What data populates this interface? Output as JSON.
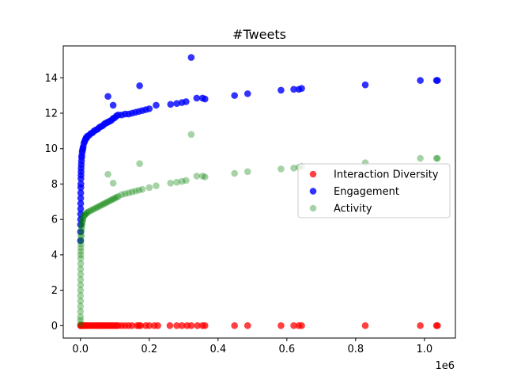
{
  "chart_data": {
    "type": "scatter",
    "title": "#Tweets",
    "xlabel": "",
    "ylabel": "",
    "x_scale_label": "1e6",
    "xlim": [
      -50000,
      1090000
    ],
    "ylim": [
      -0.7,
      15.8
    ],
    "x_ticks": [
      0,
      200000,
      400000,
      600000,
      800000,
      1000000
    ],
    "x_tick_labels": [
      "0.0",
      "0.2",
      "0.4",
      "0.6",
      "0.8",
      "1.0"
    ],
    "y_ticks": [
      0,
      2,
      4,
      6,
      8,
      10,
      12,
      14
    ],
    "y_tick_labels": [
      "0",
      "2",
      "4",
      "6",
      "8",
      "10",
      "12",
      "14"
    ],
    "grid": false,
    "legend_position": "center-right",
    "series": [
      {
        "name": "Interaction Diversity",
        "color": "#ff0000",
        "alpha": 0.75,
        "points": [
          [
            500,
            0
          ],
          [
            1000,
            0
          ],
          [
            2000,
            0
          ],
          [
            3500,
            0
          ],
          [
            5000,
            0
          ],
          [
            8000,
            0
          ],
          [
            12000,
            0
          ],
          [
            16000,
            0
          ],
          [
            20000,
            0
          ],
          [
            25000,
            0
          ],
          [
            30000,
            0
          ],
          [
            35000,
            0
          ],
          [
            40000,
            0
          ],
          [
            45000,
            0
          ],
          [
            50000,
            0
          ],
          [
            55000,
            0
          ],
          [
            60000,
            0
          ],
          [
            65000,
            0
          ],
          [
            70000,
            0
          ],
          [
            75000,
            0
          ],
          [
            80000,
            0
          ],
          [
            85000,
            0
          ],
          [
            90000,
            0
          ],
          [
            95000,
            0
          ],
          [
            100000,
            0
          ],
          [
            105000,
            0
          ],
          [
            110000,
            0
          ],
          [
            120000,
            0
          ],
          [
            130000,
            0
          ],
          [
            140000,
            0
          ],
          [
            150000,
            0
          ],
          [
            165000,
            0
          ],
          [
            170000,
            0
          ],
          [
            175000,
            0
          ],
          [
            190000,
            0
          ],
          [
            200000,
            0
          ],
          [
            215000,
            0
          ],
          [
            225000,
            0
          ],
          [
            260000,
            0
          ],
          [
            280000,
            0
          ],
          [
            295000,
            0
          ],
          [
            310000,
            0
          ],
          [
            322000,
            0
          ],
          [
            340000,
            0
          ],
          [
            355000,
            0
          ],
          [
            362000,
            0
          ],
          [
            448000,
            0
          ],
          [
            486000,
            0
          ],
          [
            583000,
            0
          ],
          [
            620000,
            0
          ],
          [
            635000,
            0
          ],
          [
            643000,
            0
          ],
          [
            828000,
            0
          ],
          [
            988000,
            0
          ],
          [
            1035000,
            0
          ],
          [
            1038000,
            0
          ]
        ]
      },
      {
        "name": "Engagement",
        "color": "#0000ff",
        "alpha": 0.8,
        "points": [
          [
            100,
            4.8
          ],
          [
            200,
            5.3
          ],
          [
            300,
            5.7
          ],
          [
            400,
            6.0
          ],
          [
            500,
            6.3
          ],
          [
            600,
            6.6
          ],
          [
            700,
            6.9
          ],
          [
            800,
            7.2
          ],
          [
            900,
            7.5
          ],
          [
            1000,
            7.8
          ],
          [
            1200,
            8.0
          ],
          [
            1400,
            8.3
          ],
          [
            1600,
            8.5
          ],
          [
            1800,
            8.7
          ],
          [
            2000,
            8.9
          ],
          [
            2500,
            9.1
          ],
          [
            3000,
            9.3
          ],
          [
            3500,
            9.5
          ],
          [
            4000,
            9.6
          ],
          [
            5000,
            9.8
          ],
          [
            6000,
            9.9
          ],
          [
            7000,
            10.0
          ],
          [
            8000,
            10.1
          ],
          [
            10000,
            10.3
          ],
          [
            12000,
            10.4
          ],
          [
            14000,
            10.5
          ],
          [
            16000,
            10.6
          ],
          [
            18000,
            10.6
          ],
          [
            20000,
            10.7
          ],
          [
            25000,
            10.75
          ],
          [
            30000,
            10.85
          ],
          [
            35000,
            10.9
          ],
          [
            40000,
            11.0
          ],
          [
            45000,
            11.05
          ],
          [
            50000,
            11.1
          ],
          [
            55000,
            11.2
          ],
          [
            60000,
            11.25
          ],
          [
            65000,
            11.3
          ],
          [
            70000,
            11.4
          ],
          [
            75000,
            11.45
          ],
          [
            80000,
            11.5
          ],
          [
            85000,
            11.55
          ],
          [
            90000,
            11.6
          ],
          [
            95000,
            11.7
          ],
          [
            100000,
            11.75
          ],
          [
            105000,
            11.85
          ],
          [
            110000,
            11.9
          ],
          [
            120000,
            11.9
          ],
          [
            130000,
            11.95
          ],
          [
            140000,
            11.95
          ],
          [
            150000,
            12.0
          ],
          [
            160000,
            12.05
          ],
          [
            170000,
            12.1
          ],
          [
            180000,
            12.15
          ],
          [
            190000,
            12.2
          ],
          [
            200000,
            12.25
          ],
          [
            220000,
            12.45
          ],
          [
            80000,
            12.95
          ],
          [
            95000,
            12.45
          ],
          [
            172000,
            13.55
          ],
          [
            262000,
            12.5
          ],
          [
            280000,
            12.55
          ],
          [
            295000,
            12.6
          ],
          [
            307000,
            12.65
          ],
          [
            322000,
            15.15
          ],
          [
            338000,
            12.85
          ],
          [
            355000,
            12.85
          ],
          [
            362000,
            12.8
          ],
          [
            448000,
            13.0
          ],
          [
            486000,
            13.1
          ],
          [
            583000,
            13.3
          ],
          [
            620000,
            13.35
          ],
          [
            635000,
            13.35
          ],
          [
            643000,
            13.4
          ],
          [
            828000,
            13.6
          ],
          [
            988000,
            13.85
          ],
          [
            1035000,
            13.85
          ],
          [
            1038000,
            13.85
          ]
        ]
      },
      {
        "name": "Activity",
        "color": "#008000",
        "alpha": 0.35,
        "points": [
          [
            100,
            0.1
          ],
          [
            100,
            0.3
          ],
          [
            100,
            0.5
          ],
          [
            100,
            0.8
          ],
          [
            100,
            1.1
          ],
          [
            200,
            1.4
          ],
          [
            200,
            1.7
          ],
          [
            300,
            2.0
          ],
          [
            300,
            2.3
          ],
          [
            400,
            2.6
          ],
          [
            500,
            2.9
          ],
          [
            600,
            3.2
          ],
          [
            700,
            3.5
          ],
          [
            800,
            3.8
          ],
          [
            900,
            4.0
          ],
          [
            1000,
            4.2
          ],
          [
            1200,
            4.4
          ],
          [
            1400,
            4.6
          ],
          [
            1600,
            4.8
          ],
          [
            1800,
            5.0
          ],
          [
            2000,
            5.1
          ],
          [
            2500,
            5.3
          ],
          [
            3000,
            5.45
          ],
          [
            3500,
            5.6
          ],
          [
            4000,
            5.7
          ],
          [
            5000,
            5.8
          ],
          [
            6000,
            5.9
          ],
          [
            7000,
            6.0
          ],
          [
            8000,
            6.1
          ],
          [
            10000,
            6.2
          ],
          [
            12000,
            6.25
          ],
          [
            15000,
            6.3
          ],
          [
            18000,
            6.35
          ],
          [
            20000,
            6.4
          ],
          [
            25000,
            6.45
          ],
          [
            30000,
            6.5
          ],
          [
            35000,
            6.55
          ],
          [
            40000,
            6.6
          ],
          [
            45000,
            6.65
          ],
          [
            50000,
            6.7
          ],
          [
            55000,
            6.75
          ],
          [
            60000,
            6.8
          ],
          [
            65000,
            6.85
          ],
          [
            70000,
            6.9
          ],
          [
            75000,
            6.95
          ],
          [
            80000,
            7.0
          ],
          [
            85000,
            7.05
          ],
          [
            90000,
            7.1
          ],
          [
            95000,
            7.15
          ],
          [
            100000,
            7.2
          ],
          [
            105000,
            7.25
          ],
          [
            110000,
            7.3
          ],
          [
            120000,
            7.4
          ],
          [
            130000,
            7.45
          ],
          [
            140000,
            7.5
          ],
          [
            150000,
            7.55
          ],
          [
            160000,
            7.6
          ],
          [
            170000,
            7.65
          ],
          [
            180000,
            7.7
          ],
          [
            200000,
            7.8
          ],
          [
            220000,
            7.9
          ],
          [
            80000,
            8.55
          ],
          [
            95000,
            8.05
          ],
          [
            172000,
            9.15
          ],
          [
            262000,
            8.05
          ],
          [
            280000,
            8.1
          ],
          [
            295000,
            8.15
          ],
          [
            307000,
            8.2
          ],
          [
            322000,
            10.8
          ],
          [
            338000,
            8.45
          ],
          [
            355000,
            8.45
          ],
          [
            362000,
            8.4
          ],
          [
            448000,
            8.6
          ],
          [
            486000,
            8.7
          ],
          [
            583000,
            8.85
          ],
          [
            620000,
            8.9
          ],
          [
            635000,
            8.95
          ],
          [
            643000,
            9.0
          ],
          [
            828000,
            9.2
          ],
          [
            988000,
            9.45
          ],
          [
            1035000,
            9.45
          ],
          [
            1038000,
            9.45
          ]
        ]
      }
    ]
  }
}
